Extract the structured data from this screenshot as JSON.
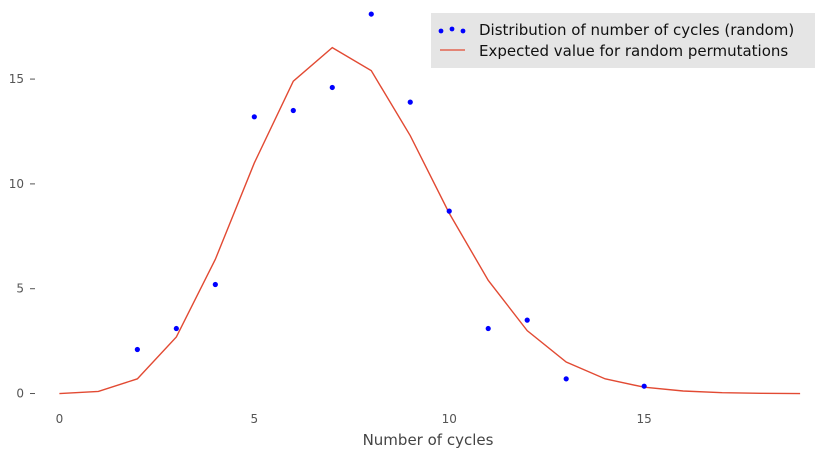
{
  "chart_data": {
    "type": "scatter",
    "xlabel": "Number of cycles",
    "ylabel": "",
    "title": "",
    "xlim": [
      -0.6,
      19.1
    ],
    "ylim": [
      -0.5,
      18.2
    ],
    "grid": false,
    "legend_position": "top-right",
    "x_ticks": [
      0,
      5,
      10,
      15
    ],
    "y_ticks": [
      0,
      5,
      10,
      15
    ],
    "series": [
      {
        "name": "Distribution of number of cycles (random)",
        "kind": "scatter",
        "color": "#0000ff",
        "x": [
          2,
          3,
          4,
          5,
          6,
          7,
          8,
          9,
          10,
          11,
          12,
          13,
          15
        ],
        "y": [
          2.1,
          3.1,
          5.2,
          13.2,
          13.5,
          14.6,
          18.1,
          13.9,
          8.7,
          3.1,
          3.5,
          0.7,
          0.35
        ]
      },
      {
        "name": "Expected value for random permutations",
        "kind": "line",
        "color": "#e24a33",
        "x": [
          0,
          1,
          2,
          3,
          4,
          5,
          6,
          7,
          8,
          9,
          10,
          11,
          12,
          13,
          14,
          15,
          16,
          17,
          18,
          19
        ],
        "y": [
          0.0,
          0.1,
          0.7,
          2.7,
          6.4,
          11.0,
          14.9,
          16.5,
          15.4,
          12.3,
          8.6,
          5.4,
          3.0,
          1.5,
          0.7,
          0.3,
          0.12,
          0.04,
          0.01,
          0.0
        ]
      }
    ]
  }
}
